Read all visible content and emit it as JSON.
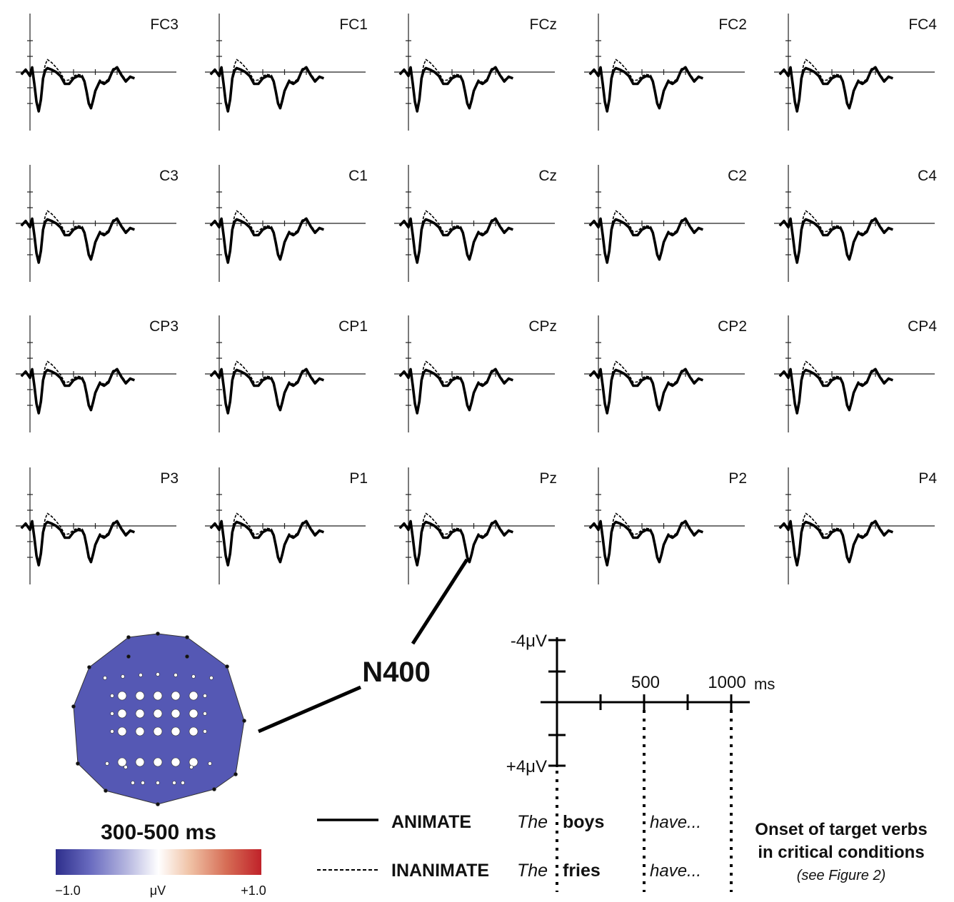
{
  "chart_data": {
    "type": "line",
    "xlabel": "ms",
    "ylabel": "μV",
    "x_range_ms": [
      -100,
      1200
    ],
    "y_range_uv": [
      -4,
      4
    ],
    "negative_up": true,
    "electrodes": [
      [
        "FC3",
        "FC1",
        "FCz",
        "FC2",
        "FC4"
      ],
      [
        "C3",
        "C1",
        "Cz",
        "C2",
        "C4"
      ],
      [
        "CP3",
        "CP1",
        "CPz",
        "CP2",
        "CP4"
      ],
      [
        "P3",
        "P1",
        "Pz",
        "P2",
        "P4"
      ]
    ],
    "time_ms": [
      -100,
      -50,
      0,
      25,
      50,
      75,
      100,
      125,
      150,
      175,
      200,
      250,
      300,
      350,
      400,
      450,
      500,
      550,
      600,
      625,
      650,
      675,
      700,
      725,
      750,
      800,
      850,
      900,
      950,
      1000,
      1050,
      1100,
      1150,
      1200
    ],
    "series": [
      {
        "name": "ANIMATE",
        "style": "solid",
        "values": [
          0.3,
          -0.3,
          0.5,
          -0.6,
          1.5,
          3.8,
          5.0,
          3.5,
          0.8,
          -0.2,
          -0.5,
          -0.3,
          0,
          0.5,
          1.5,
          1.5,
          0.8,
          0.5,
          0.6,
          1.2,
          2.5,
          4.0,
          4.6,
          3.6,
          2.4,
          1.2,
          1.5,
          1.1,
          -0.2,
          -0.6,
          0.4,
          1.2,
          0.6,
          0.8
        ]
      },
      {
        "name": "INANIMATE",
        "style": "dashed",
        "values": [
          0.3,
          -0.3,
          0.5,
          -0.6,
          1.5,
          3.8,
          5.0,
          3.3,
          0.4,
          -0.9,
          -1.6,
          -1.2,
          -0.6,
          0.1,
          1.1,
          1.0,
          0.5,
          0.3,
          0.4,
          1.0,
          2.3,
          3.8,
          4.4,
          3.4,
          2.2,
          1.0,
          1.3,
          0.9,
          -0.4,
          -0.7,
          0.2,
          1.0,
          0.5,
          0.8
        ]
      }
    ]
  },
  "annotation": {
    "label": "N400"
  },
  "scale": {
    "top_label": "-4μV",
    "bottom_label": "+4μV",
    "tick_500": "500",
    "tick_1000": "1000",
    "unit": "ms"
  },
  "topomap": {
    "title": "300-500 ms",
    "colorbar": {
      "min_label": "−1.0",
      "unit_label": "μV",
      "max_label": "+1.0",
      "colors": [
        "#2e2f8c",
        "#6a6cc0",
        "#b7b8e0",
        "#ffffff",
        "#f0c3a7",
        "#d66d55",
        "#c0222a"
      ]
    },
    "fill_color": "#5558b4"
  },
  "legend": {
    "animate_label": "ANIMATE",
    "inanimate_label": "INANIMATE",
    "the_1": "The",
    "the_2": "The",
    "noun_animate": "boys",
    "noun_inanimate": "fries",
    "verb_1": "have...",
    "verb_2": "have..."
  },
  "note": {
    "line1": "Onset of target verbs",
    "line2": "in critical conditions",
    "line3": "(see Figure 2)"
  }
}
